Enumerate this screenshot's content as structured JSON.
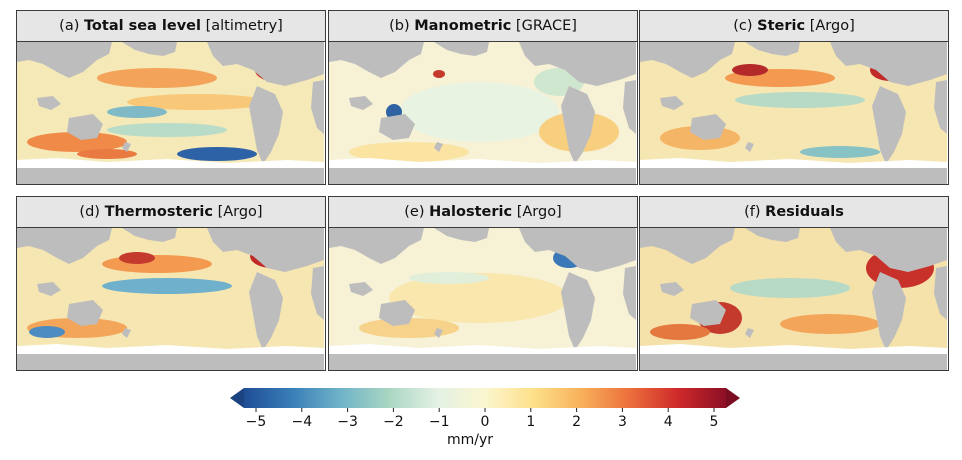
{
  "panels": [
    {
      "letter": "(a)",
      "name": "Total sea level",
      "source": "[altimetry]"
    },
    {
      "letter": "(b)",
      "name": "Manometric",
      "source": "[GRACE]"
    },
    {
      "letter": "(c)",
      "name": "Steric",
      "source": "[Argo]"
    },
    {
      "letter": "(d)",
      "name": "Thermosteric",
      "source": "[Argo]"
    },
    {
      "letter": "(e)",
      "name": "Halosteric",
      "source": "[Argo]"
    },
    {
      "letter": "(f)",
      "name": "Residuals",
      "source": ""
    }
  ],
  "colorbar": {
    "ticks": [
      "−5",
      "−4",
      "−3",
      "−2",
      "−1",
      "0",
      "1",
      "2",
      "3",
      "4",
      "5"
    ],
    "unit": "mm/yr",
    "colors": [
      "#1f4e96",
      "#3a7fb8",
      "#6fb3c9",
      "#a9d6c2",
      "#e3f1e4",
      "#fbf6cf",
      "#fde08a",
      "#f8b05a",
      "#ec6f3c",
      "#cf2a2a",
      "#8b0f25"
    ]
  },
  "colors": {
    "land": "#bdbdbd",
    "ocean_base": "#f7f3dc",
    "frame": "#3b3b3b",
    "title_bg": "#e6e6e6"
  }
}
